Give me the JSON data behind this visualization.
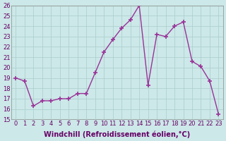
{
  "x": [
    0,
    1,
    2,
    3,
    4,
    5,
    6,
    7,
    8,
    9,
    10,
    11,
    12,
    13,
    14,
    15,
    16,
    17,
    18,
    19,
    20,
    21,
    22,
    23
  ],
  "y": [
    19.0,
    18.7,
    16.3,
    16.8,
    16.8,
    17.0,
    17.0,
    17.5,
    17.5,
    19.5,
    21.5,
    22.7,
    23.8,
    24.6,
    26.0,
    18.3,
    23.2,
    23.0,
    24.0,
    24.4,
    20.6,
    20.1,
    18.7,
    15.5
  ],
  "line_color": "#993399",
  "marker": "+",
  "markersize": 5,
  "markeredgewidth": 1.2,
  "linewidth": 1.0,
  "linestyle": "-",
  "xlabel": "Windchill (Refroidissement éolien,°C)",
  "ylabel": "",
  "ylim": [
    15,
    26
  ],
  "xlim": [
    -0.5,
    23.5
  ],
  "yticks": [
    15,
    16,
    17,
    18,
    19,
    20,
    21,
    22,
    23,
    24,
    25,
    26
  ],
  "xticks": [
    0,
    1,
    2,
    3,
    4,
    5,
    6,
    7,
    8,
    9,
    10,
    11,
    12,
    13,
    14,
    15,
    16,
    17,
    18,
    19,
    20,
    21,
    22,
    23
  ],
  "xtick_labels": [
    "0",
    "1",
    "2",
    "3",
    "4",
    "5",
    "6",
    "7",
    "8",
    "9",
    "10",
    "11",
    "12",
    "13",
    "14",
    "15",
    "16",
    "17",
    "18",
    "19",
    "20",
    "21",
    "22",
    "23"
  ],
  "background_color": "#cce8e8",
  "grid_color": "#aacccc",
  "spine_color": "#888888",
  "label_fontsize": 7,
  "tick_fontsize": 6
}
